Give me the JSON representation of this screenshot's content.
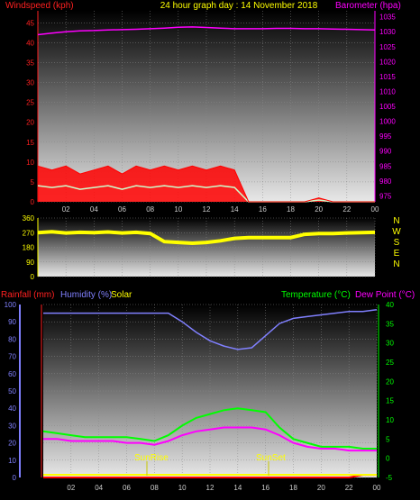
{
  "header": {
    "left_label": "Windspeed (kph)",
    "center_label": "24 hour graph day : 14 November 2018",
    "right_label": "Barometer (hpa)"
  },
  "lower_header": {
    "rainfall_label": "Rainfall (mm)",
    "humidity_label": "Humidity (%)",
    "solar_label": "Solar",
    "temperature_label": "Temperature (°C)",
    "dewpoint_label": "Dew Point (°C)"
  },
  "annotations": {
    "sunrise": "SunRise",
    "sunset": "SunSet"
  },
  "colors": {
    "wind": "#ff0000",
    "gust_fill": "#ff0000",
    "avg_wind": "#ccffcc",
    "barometer": "#ff00ff",
    "direction": "#ffff00",
    "humidity": "#8080ff",
    "temperature": "#00ff00",
    "dewpoint": "#ff00ff",
    "rain": "#ff0000",
    "solar": "#ffff00"
  },
  "chart_data": [
    {
      "type": "line",
      "title": "24 hour graph day : 14 November 2018",
      "x_hours": [
        "02",
        "04",
        "06",
        "08",
        "10",
        "12",
        "14",
        "16",
        "18",
        "20",
        "22",
        "00"
      ],
      "x": [
        0,
        1,
        2,
        3,
        4,
        5,
        6,
        7,
        8,
        9,
        10,
        11,
        12,
        13,
        14,
        15,
        16,
        17,
        18,
        19,
        20,
        21,
        22,
        23,
        24
      ],
      "xlim": [
        0,
        24
      ],
      "left_axis": {
        "label": "Windspeed (kph)",
        "ticks": [
          0,
          5,
          10,
          15,
          20,
          25,
          30,
          35,
          40,
          45
        ],
        "ylim": [
          0,
          48
        ]
      },
      "right_axis": {
        "label": "Barometer (hpa)",
        "ticks": [
          975,
          980,
          985,
          990,
          995,
          1000,
          1005,
          1010,
          1015,
          1020,
          1025,
          1030,
          1035
        ],
        "ylim": [
          973,
          1037
        ]
      },
      "series": [
        {
          "name": "Windspeed (kph)",
          "axis": "left",
          "values": [
            9,
            8,
            9,
            7,
            8,
            9,
            7,
            9,
            8,
            9,
            8,
            9,
            8,
            9,
            8,
            0,
            0,
            0,
            0,
            0,
            1,
            0,
            0,
            0,
            0
          ]
        },
        {
          "name": "Barometer (hpa)",
          "axis": "right",
          "values": [
            1029,
            1029.5,
            1030,
            1030.3,
            1030.4,
            1030.6,
            1030.7,
            1030.8,
            1031,
            1031.2,
            1031.5,
            1031.6,
            1031.4,
            1031.2,
            1031,
            1031,
            1031,
            1031.1,
            1031.1,
            1031,
            1031,
            1030.9,
            1030.8,
            1030.7,
            1030.6
          ]
        }
      ]
    },
    {
      "type": "line",
      "x_hours": [
        "02",
        "04",
        "06",
        "08",
        "10",
        "12",
        "14",
        "16",
        "18",
        "20",
        "22",
        "00"
      ],
      "right_axis": {
        "labels": [
          "N",
          "W",
          "S",
          "E",
          "N"
        ]
      },
      "left_axis": {
        "ticks": [
          0,
          90,
          180,
          270,
          360
        ],
        "ylim": [
          0,
          360
        ]
      },
      "series": [
        {
          "name": "Wind direction",
          "x": [
            0,
            1,
            2,
            3,
            4,
            5,
            6,
            7,
            8,
            9,
            10,
            11,
            12,
            13,
            14,
            15,
            16,
            17,
            18,
            19,
            20,
            21,
            22,
            23,
            24
          ],
          "values": [
            270,
            275,
            268,
            272,
            270,
            274,
            268,
            272,
            265,
            215,
            210,
            205,
            210,
            220,
            235,
            240,
            240,
            240,
            240,
            260,
            265,
            265,
            268,
            270,
            272
          ]
        }
      ]
    },
    {
      "type": "line",
      "x_hours": [
        "02",
        "04",
        "06",
        "08",
        "10",
        "12",
        "14",
        "16",
        "18",
        "20",
        "22",
        "00"
      ],
      "x": [
        0,
        1,
        2,
        3,
        4,
        5,
        6,
        7,
        8,
        9,
        10,
        11,
        12,
        13,
        14,
        15,
        16,
        17,
        18,
        19,
        20,
        21,
        22,
        23,
        24
      ],
      "left_axis": {
        "ticks": [
          0,
          10,
          20,
          30,
          40,
          50,
          60,
          70,
          80,
          90,
          100
        ],
        "ylim": [
          0,
          100
        ]
      },
      "right_axis": {
        "ticks": [
          -5,
          0,
          5,
          10,
          15,
          20,
          25,
          30,
          35,
          40
        ],
        "ylim": [
          -5,
          40
        ]
      },
      "series": [
        {
          "name": "Humidity (%)",
          "axis": "left",
          "values": [
            95,
            95,
            95,
            95,
            95,
            95,
            95,
            95,
            95,
            95,
            90,
            84,
            79,
            76,
            74,
            75,
            82,
            89,
            92,
            93,
            94,
            95,
            96,
            96,
            97
          ]
        },
        {
          "name": "Temperature (°C)",
          "axis": "right",
          "values": [
            7,
            6.5,
            6,
            5.5,
            5.5,
            5.5,
            5.5,
            5,
            4.5,
            6,
            8.5,
            10.5,
            11.5,
            12.5,
            13,
            12.5,
            12,
            8,
            5,
            4,
            3,
            3,
            3,
            2.5,
            2.5
          ]
        },
        {
          "name": "Dew Point (°C)",
          "axis": "right",
          "values": [
            5,
            5,
            4.5,
            4.5,
            4.5,
            4.5,
            4,
            4,
            3.5,
            4.5,
            6,
            7,
            7.5,
            8,
            8,
            8,
            7.5,
            6,
            4,
            3,
            2.5,
            2.5,
            2,
            2,
            2
          ]
        },
        {
          "name": "Rainfall (mm)",
          "axis": "left",
          "values": [
            0,
            0,
            0,
            0,
            0,
            0,
            0,
            0,
            0,
            0,
            0,
            0,
            0,
            0,
            0,
            0,
            0,
            0,
            0,
            0,
            0,
            0,
            0,
            1.5,
            1.5
          ]
        }
      ]
    }
  ]
}
